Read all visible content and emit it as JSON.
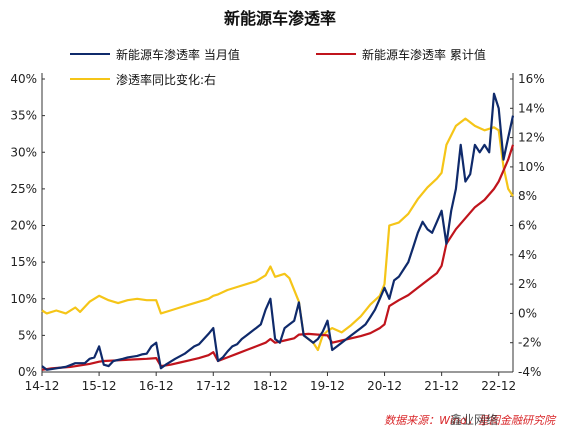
{
  "chart_data": {
    "type": "line",
    "title": "新能源车渗透率",
    "source": "数据来源：Wind，星图金融研究院",
    "watermark": "鑫业网络",
    "legend_placement": "top",
    "grid": false,
    "x_tick_labels": [
      "14-12",
      "15-12",
      "16-12",
      "17-12",
      "18-12",
      "19-12",
      "20-12",
      "21-12",
      "22-12"
    ],
    "x_range": [
      "2014-12",
      "2023-03"
    ],
    "y_left": {
      "ticks": [
        "0%",
        "5%",
        "10%",
        "15%",
        "20%",
        "25%",
        "30%",
        "35%",
        "40%"
      ],
      "ylim": [
        0,
        40
      ],
      "unit": "%"
    },
    "y_right": {
      "ticks": [
        "-4%",
        "-2%",
        "0%",
        "2%",
        "4%",
        "6%",
        "8%",
        "10%",
        "12%",
        "14%",
        "16%"
      ],
      "ylim": [
        -4,
        16
      ],
      "unit": "%"
    },
    "series": [
      {
        "name": "新能源车渗透率 当月值",
        "axis": "left",
        "color": "#0f2a6b",
        "points": [
          [
            "2014-12",
            0.8
          ],
          [
            "2015-01",
            0.3
          ],
          [
            "2015-03",
            0.5
          ],
          [
            "2015-05",
            0.7
          ],
          [
            "2015-07",
            1.2
          ],
          [
            "2015-09",
            1.2
          ],
          [
            "2015-10",
            1.8
          ],
          [
            "2015-11",
            2.0
          ],
          [
            "2015-12",
            3.5
          ],
          [
            "2015-12",
            3.5
          ],
          [
            "2016-01",
            1.0
          ],
          [
            "2016-02",
            0.8
          ],
          [
            "2016-03",
            1.5
          ],
          [
            "2016-05",
            1.8
          ],
          [
            "2016-06",
            2.0
          ],
          [
            "2016-08",
            2.2
          ],
          [
            "2016-09",
            2.4
          ],
          [
            "2016-10",
            2.5
          ],
          [
            "2016-11",
            3.5
          ],
          [
            "2016-12",
            4.0
          ],
          [
            "2017-01",
            0.5
          ],
          [
            "2017-02",
            1.0
          ],
          [
            "2017-04",
            1.8
          ],
          [
            "2017-06",
            2.5
          ],
          [
            "2017-07",
            3.0
          ],
          [
            "2017-08",
            3.5
          ],
          [
            "2017-09",
            3.8
          ],
          [
            "2017-10",
            4.5
          ],
          [
            "2017-11",
            5.2
          ],
          [
            "2017-12",
            6.0
          ],
          [
            "2018-01",
            1.5
          ],
          [
            "2018-02",
            2.0
          ],
          [
            "2018-03",
            2.8
          ],
          [
            "2018-04",
            3.5
          ],
          [
            "2018-05",
            3.8
          ],
          [
            "2018-06",
            4.5
          ],
          [
            "2018-07",
            5.0
          ],
          [
            "2018-08",
            5.5
          ],
          [
            "2018-09",
            6.0
          ],
          [
            "2018-10",
            6.5
          ],
          [
            "2018-11",
            8.5
          ],
          [
            "2018-12",
            10.0
          ],
          [
            "2019-01",
            4.5
          ],
          [
            "2019-02",
            4.0
          ],
          [
            "2019-03",
            6.0
          ],
          [
            "2019-04",
            6.5
          ],
          [
            "2019-05",
            7.0
          ],
          [
            "2019-06",
            9.5
          ],
          [
            "2019-07",
            5.0
          ],
          [
            "2019-08",
            4.5
          ],
          [
            "2019-09",
            4.0
          ],
          [
            "2019-10",
            4.5
          ],
          [
            "2019-11",
            5.5
          ],
          [
            "2019-12",
            7.0
          ],
          [
            "2020-01",
            3.0
          ],
          [
            "2020-02",
            3.5
          ],
          [
            "2020-03",
            4.0
          ],
          [
            "2020-04",
            4.5
          ],
          [
            "2020-05",
            5.0
          ],
          [
            "2020-06",
            5.5
          ],
          [
            "2020-07",
            6.0
          ],
          [
            "2020-08",
            6.5
          ],
          [
            "2020-09",
            7.5
          ],
          [
            "2020-10",
            8.5
          ],
          [
            "2020-11",
            10.0
          ],
          [
            "2020-12",
            11.5
          ],
          [
            "2021-01",
            10.0
          ],
          [
            "2021-02",
            12.5
          ],
          [
            "2021-03",
            13.0
          ],
          [
            "2021-04",
            14.0
          ],
          [
            "2021-05",
            15.0
          ],
          [
            "2021-06",
            17.0
          ],
          [
            "2021-07",
            19.0
          ],
          [
            "2021-08",
            20.5
          ],
          [
            "2021-09",
            19.5
          ],
          [
            "2021-10",
            19.0
          ],
          [
            "2021-11",
            20.5
          ],
          [
            "2021-12",
            22.0
          ],
          [
            "2022-01",
            17.5
          ],
          [
            "2022-02",
            22.0
          ],
          [
            "2022-03",
            25.0
          ],
          [
            "2022-04",
            31.0
          ],
          [
            "2022-05",
            26.0
          ],
          [
            "2022-06",
            27.0
          ],
          [
            "2022-07",
            31.0
          ],
          [
            "2022-08",
            30.0
          ],
          [
            "2022-09",
            31.0
          ],
          [
            "2022-10",
            30.0
          ],
          [
            "2022-11",
            38.0
          ],
          [
            "2022-12",
            36.0
          ],
          [
            "2023-01",
            29.0
          ],
          [
            "2023-02",
            32.0
          ],
          [
            "2023-03",
            35.0
          ]
        ]
      },
      {
        "name": "新能源车渗透率 累计值",
        "axis": "left",
        "color": "#c0141c",
        "points": [
          [
            "2014-12",
            0.3
          ],
          [
            "2015-02",
            0.5
          ],
          [
            "2015-04",
            0.6
          ],
          [
            "2015-06",
            0.7
          ],
          [
            "2015-08",
            0.9
          ],
          [
            "2015-10",
            1.1
          ],
          [
            "2015-12",
            1.4
          ],
          [
            "2016-01",
            1.5
          ],
          [
            "2016-04",
            1.6
          ],
          [
            "2016-07",
            1.7
          ],
          [
            "2016-10",
            1.8
          ],
          [
            "2016-12",
            1.9
          ],
          [
            "2017-01",
            0.8
          ],
          [
            "2017-03",
            1.0
          ],
          [
            "2017-05",
            1.3
          ],
          [
            "2017-07",
            1.6
          ],
          [
            "2017-09",
            1.9
          ],
          [
            "2017-11",
            2.3
          ],
          [
            "2017-12",
            2.7
          ],
          [
            "2018-01",
            1.5
          ],
          [
            "2018-03",
            2.0
          ],
          [
            "2018-05",
            2.5
          ],
          [
            "2018-07",
            3.0
          ],
          [
            "2018-09",
            3.5
          ],
          [
            "2018-11",
            4.0
          ],
          [
            "2018-12",
            4.5
          ],
          [
            "2019-01",
            4.0
          ],
          [
            "2019-03",
            4.3
          ],
          [
            "2019-05",
            4.6
          ],
          [
            "2019-06",
            5.1
          ],
          [
            "2019-08",
            5.2
          ],
          [
            "2019-10",
            5.1
          ],
          [
            "2019-12",
            5.0
          ],
          [
            "2020-01",
            4.0
          ],
          [
            "2020-03",
            4.3
          ],
          [
            "2020-05",
            4.6
          ],
          [
            "2020-07",
            4.9
          ],
          [
            "2020-09",
            5.3
          ],
          [
            "2020-11",
            6.0
          ],
          [
            "2020-12",
            6.5
          ],
          [
            "2021-01",
            9.0
          ],
          [
            "2021-03",
            9.8
          ],
          [
            "2021-05",
            10.5
          ],
          [
            "2021-07",
            11.5
          ],
          [
            "2021-09",
            12.5
          ],
          [
            "2021-11",
            13.5
          ],
          [
            "2021-12",
            14.5
          ],
          [
            "2022-01",
            17.5
          ],
          [
            "2022-03",
            19.5
          ],
          [
            "2022-05",
            21.0
          ],
          [
            "2022-07",
            22.5
          ],
          [
            "2022-09",
            23.5
          ],
          [
            "2022-11",
            25.0
          ],
          [
            "2022-12",
            26.0
          ],
          [
            "2023-01",
            27.5
          ],
          [
            "2023-02",
            29.0
          ],
          [
            "2023-03",
            31.0
          ]
        ]
      },
      {
        "name": "渗透率同比变化:右",
        "axis": "right",
        "color": "#f5c518",
        "points": [
          [
            "2014-12",
            0.2
          ],
          [
            "2015-01",
            0.0
          ],
          [
            "2015-03",
            0.2
          ],
          [
            "2015-05",
            0.0
          ],
          [
            "2015-07",
            0.4
          ],
          [
            "2015-08",
            0.1
          ],
          [
            "2015-10",
            0.8
          ],
          [
            "2015-12",
            1.2
          ],
          [
            "2016-02",
            0.9
          ],
          [
            "2016-04",
            0.7
          ],
          [
            "2016-06",
            0.9
          ],
          [
            "2016-08",
            1.0
          ],
          [
            "2016-10",
            0.9
          ],
          [
            "2016-12",
            0.9
          ],
          [
            "2017-01",
            0.0
          ],
          [
            "2017-03",
            0.2
          ],
          [
            "2017-05",
            0.4
          ],
          [
            "2017-07",
            0.6
          ],
          [
            "2017-09",
            0.8
          ],
          [
            "2017-11",
            1.0
          ],
          [
            "2017-12",
            1.2
          ],
          [
            "2018-01",
            1.3
          ],
          [
            "2018-03",
            1.6
          ],
          [
            "2018-05",
            1.8
          ],
          [
            "2018-07",
            2.0
          ],
          [
            "2018-09",
            2.2
          ],
          [
            "2018-11",
            2.6
          ],
          [
            "2018-12",
            3.2
          ],
          [
            "2019-01",
            2.5
          ],
          [
            "2019-03",
            2.7
          ],
          [
            "2019-04",
            2.4
          ],
          [
            "2019-06",
            0.8
          ],
          [
            "2019-07",
            -1.5
          ],
          [
            "2019-09",
            -2.0
          ],
          [
            "2019-10",
            -2.5
          ],
          [
            "2019-11",
            -1.5
          ],
          [
            "2019-12",
            -1.2
          ],
          [
            "2020-01",
            -1.0
          ],
          [
            "2020-03",
            -1.3
          ],
          [
            "2020-05",
            -0.8
          ],
          [
            "2020-07",
            -0.2
          ],
          [
            "2020-09",
            0.6
          ],
          [
            "2020-11",
            1.2
          ],
          [
            "2020-12",
            2.0
          ],
          [
            "2021-01",
            6.0
          ],
          [
            "2021-03",
            6.2
          ],
          [
            "2021-05",
            6.8
          ],
          [
            "2021-07",
            7.8
          ],
          [
            "2021-09",
            8.6
          ],
          [
            "2021-11",
            9.2
          ],
          [
            "2021-12",
            9.6
          ],
          [
            "2022-01",
            11.5
          ],
          [
            "2022-03",
            12.8
          ],
          [
            "2022-05",
            13.3
          ],
          [
            "2022-07",
            12.8
          ],
          [
            "2022-09",
            12.5
          ],
          [
            "2022-11",
            12.7
          ],
          [
            "2022-12",
            12.5
          ],
          [
            "2023-01",
            10.0
          ],
          [
            "2023-02",
            8.5
          ],
          [
            "2023-03",
            8.0
          ]
        ]
      }
    ]
  }
}
